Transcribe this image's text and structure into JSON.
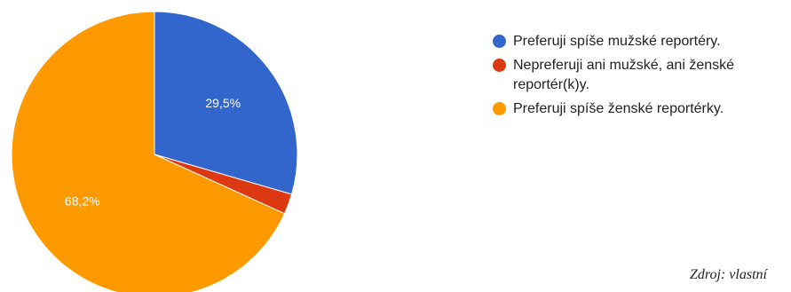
{
  "chart_data": {
    "type": "pie",
    "slices": [
      {
        "label": "Preferuji spíše mužské reportéry.",
        "value": 29.5,
        "data_label": "29,5%",
        "color": "#3366cc"
      },
      {
        "label": "Nepreferuji ani mužské, ani ženské reportér(k)y.",
        "value": 2.3,
        "data_label": "",
        "color": "#dc3912"
      },
      {
        "label": "Preferuji spíše ženské reportérky.",
        "value": 68.2,
        "data_label": "68,2%",
        "color": "#ff9900"
      }
    ],
    "legend_position": "right"
  },
  "legend": {
    "items": [
      {
        "label": "Preferuji spíše mužské reportéry.",
        "color": "#3366cc"
      },
      {
        "label": "Nepreferuji ani mužské, ani ženské reportér(k)y.",
        "color": "#dc3912"
      },
      {
        "label": "Preferuji spíše ženské reportérky.",
        "color": "#ff9900"
      }
    ]
  },
  "source_note": "Zdroj: vlastní"
}
